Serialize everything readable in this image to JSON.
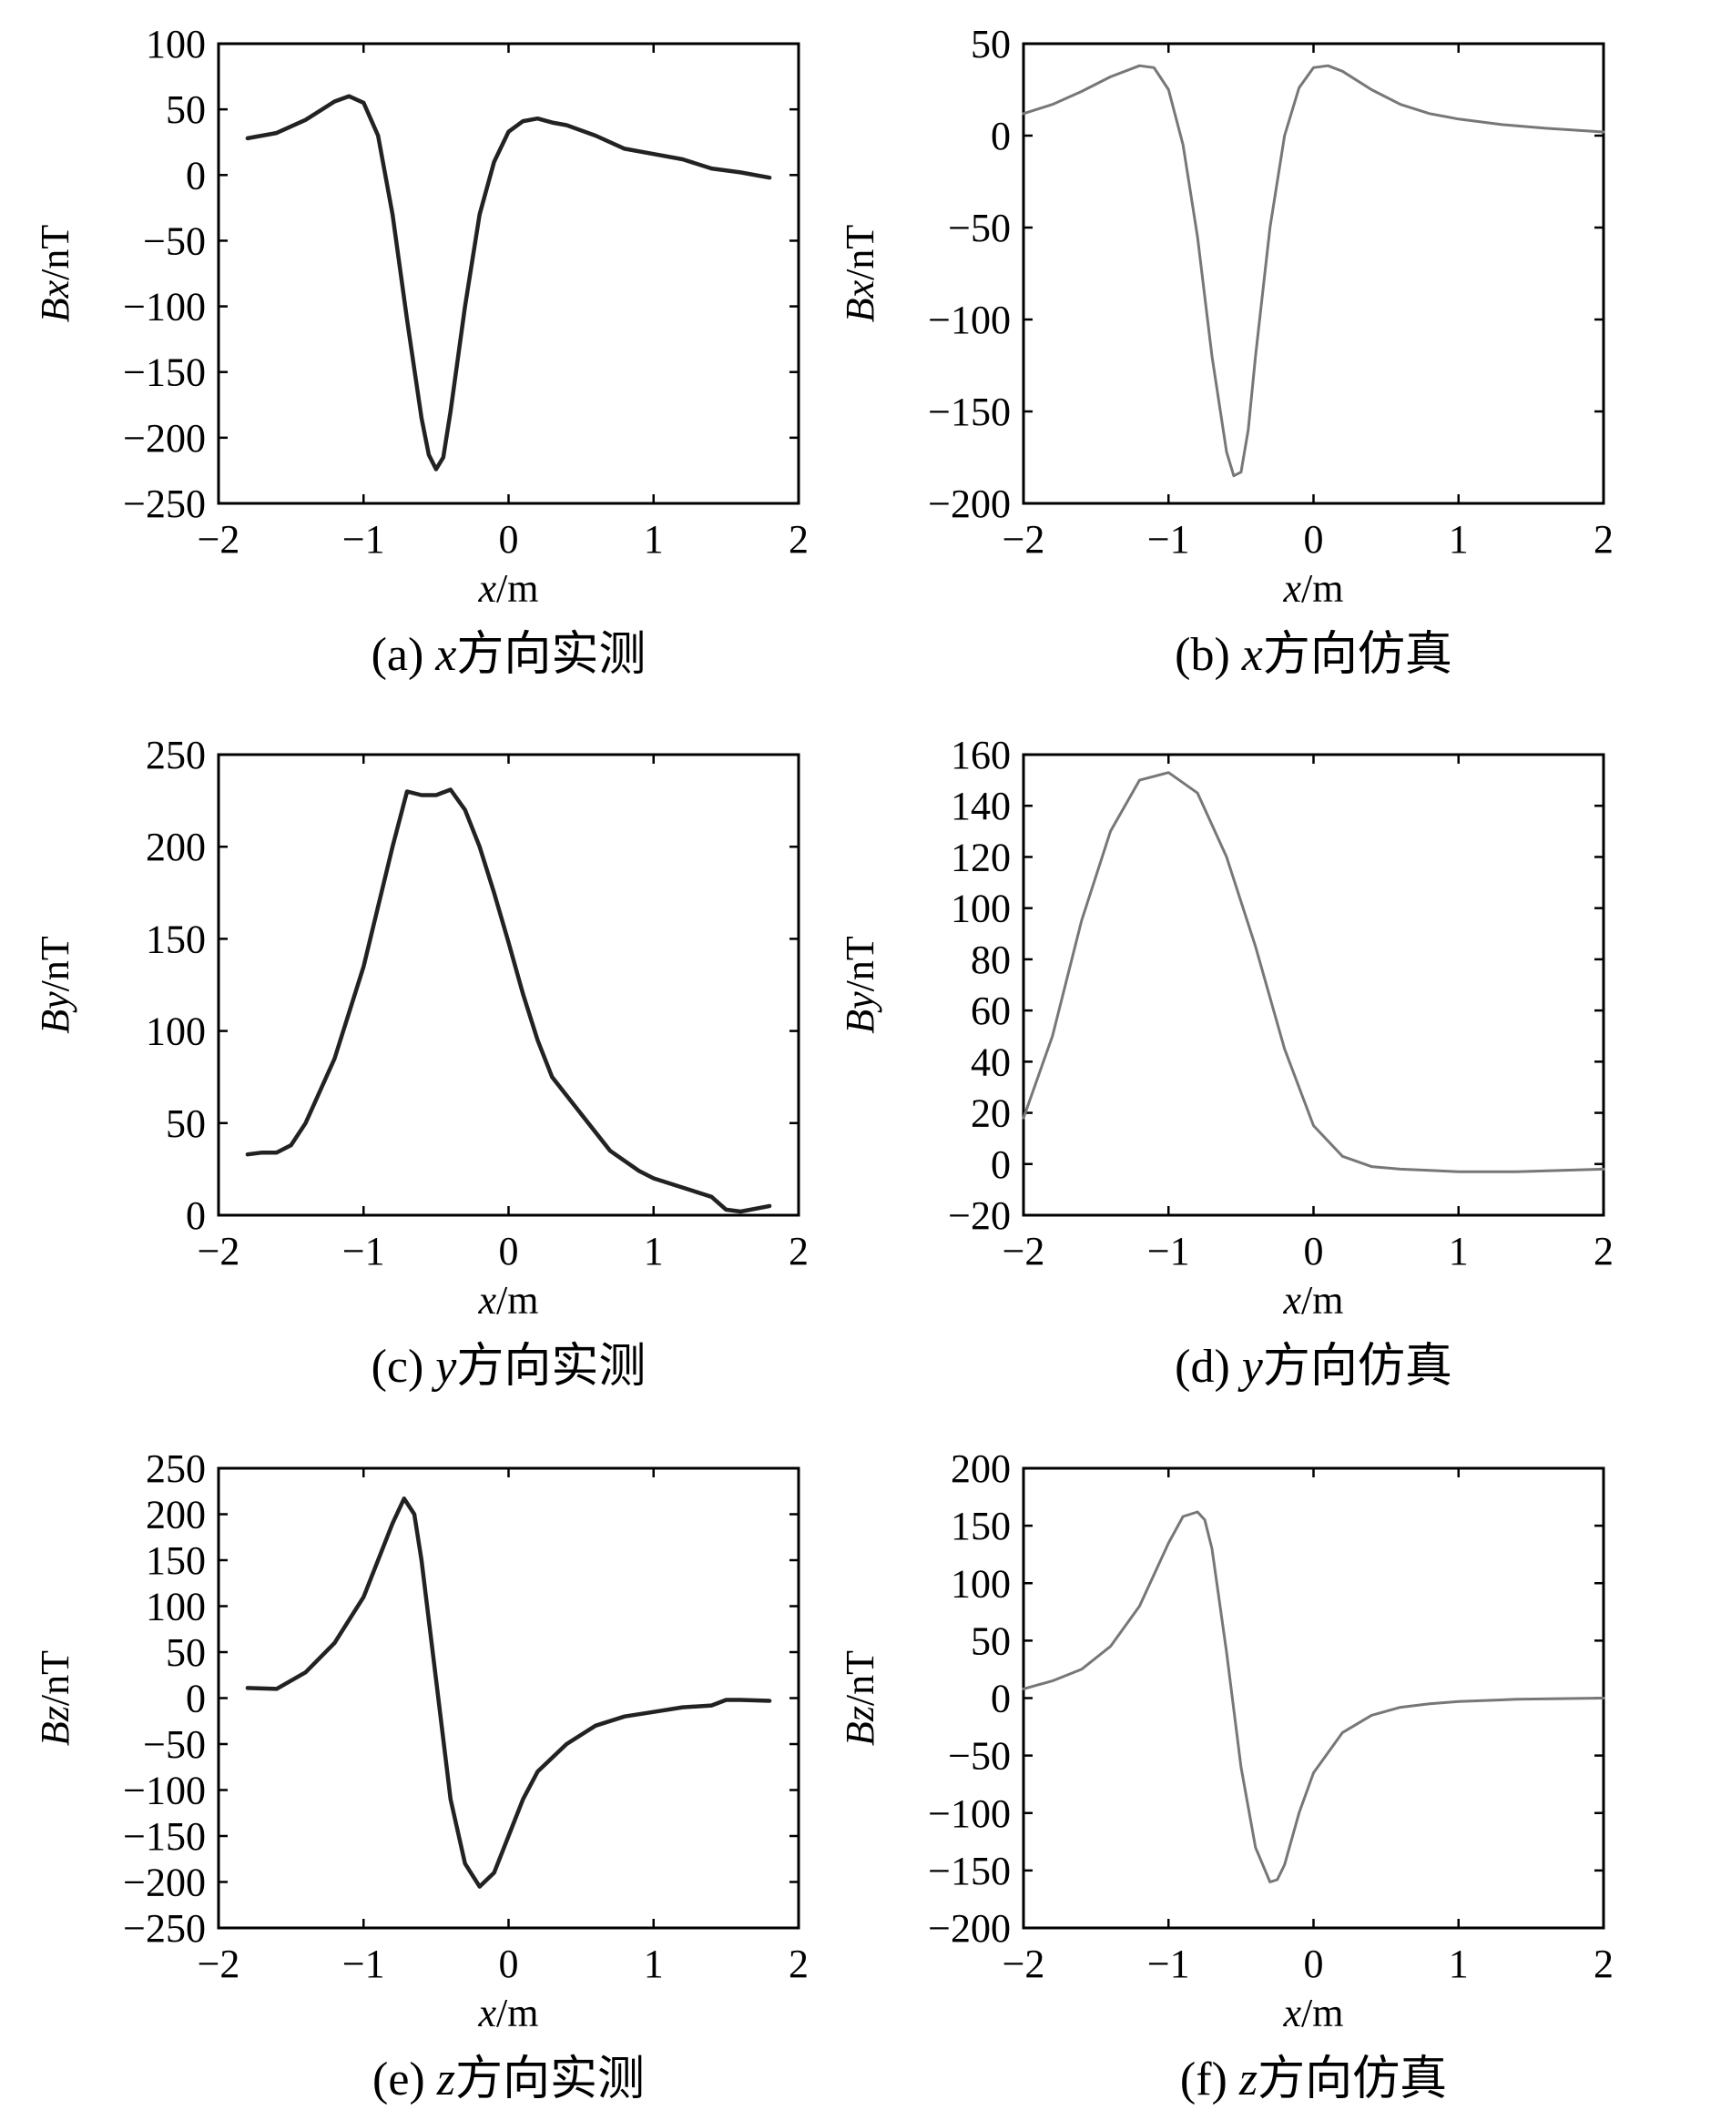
{
  "chart_data": [
    {
      "type": "line",
      "caption": {
        "label": "(a) ",
        "var": "x",
        "text": "方向实测"
      },
      "xlabel": {
        "var": "x",
        "unit": "/m"
      },
      "ylabel": {
        "var": "Bx",
        "unit": "/nT"
      },
      "xlim": [
        -2,
        2
      ],
      "ylim": [
        -250,
        100
      ],
      "xticks": [
        -2,
        -1,
        0,
        1,
        2
      ],
      "yticks": [
        -250,
        -200,
        -150,
        -100,
        -50,
        0,
        50,
        100
      ],
      "color": "#222222",
      "grid": false,
      "series": [
        {
          "x": [
            -1.8,
            -1.6,
            -1.4,
            -1.2,
            -1.1,
            -1.0,
            -0.9,
            -0.8,
            -0.7,
            -0.6,
            -0.55,
            -0.5,
            -0.45,
            -0.4,
            -0.3,
            -0.2,
            -0.1,
            0.0,
            0.1,
            0.2,
            0.3,
            0.4,
            0.6,
            0.8,
            1.0,
            1.2,
            1.4,
            1.6,
            1.8
          ],
          "y": [
            28,
            32,
            42,
            56,
            60,
            55,
            30,
            -30,
            -110,
            -185,
            -213,
            -224,
            -215,
            -180,
            -100,
            -30,
            10,
            33,
            41,
            43,
            40,
            38,
            30,
            20,
            16,
            12,
            5,
            2,
            -2
          ]
        }
      ]
    },
    {
      "type": "line",
      "caption": {
        "label": "(b) ",
        "var": "x",
        "text": "方向仿真"
      },
      "xlabel": {
        "var": "x",
        "unit": "/m"
      },
      "ylabel": {
        "var": "Bx",
        "unit": "/nT"
      },
      "xlim": [
        -2,
        2
      ],
      "ylim": [
        -200,
        50
      ],
      "xticks": [
        -2,
        -1,
        0,
        1,
        2
      ],
      "yticks": [
        -200,
        -150,
        -100,
        -50,
        0,
        50
      ],
      "color": "#777777",
      "grid": false,
      "series": [
        {
          "x": [
            -2.0,
            -1.8,
            -1.6,
            -1.4,
            -1.2,
            -1.1,
            -1.0,
            -0.9,
            -0.8,
            -0.7,
            -0.6,
            -0.55,
            -0.5,
            -0.45,
            -0.4,
            -0.3,
            -0.2,
            -0.1,
            0.0,
            0.1,
            0.2,
            0.4,
            0.6,
            0.8,
            1.0,
            1.3,
            1.6,
            2.0
          ],
          "y": [
            12,
            17,
            24,
            32,
            38,
            37,
            25,
            -5,
            -55,
            -120,
            -172,
            -185,
            -183,
            -160,
            -120,
            -50,
            0,
            26,
            37,
            38,
            35,
            25,
            17,
            12,
            9,
            6,
            4,
            2
          ]
        }
      ]
    },
    {
      "type": "line",
      "caption": {
        "label": "(c) ",
        "var": "y",
        "text": "方向实测"
      },
      "xlabel": {
        "var": "x",
        "unit": "/m"
      },
      "ylabel": {
        "var": "By",
        "unit": "/nT"
      },
      "xlim": [
        -2,
        2
      ],
      "ylim": [
        0,
        250
      ],
      "xticks": [
        -2,
        -1,
        0,
        1,
        2
      ],
      "yticks": [
        0,
        50,
        100,
        150,
        200,
        250
      ],
      "color": "#222222",
      "grid": false,
      "series": [
        {
          "x": [
            -1.8,
            -1.7,
            -1.6,
            -1.5,
            -1.4,
            -1.2,
            -1.0,
            -0.8,
            -0.7,
            -0.6,
            -0.5,
            -0.4,
            -0.3,
            -0.2,
            -0.1,
            0.0,
            0.1,
            0.2,
            0.3,
            0.5,
            0.7,
            0.9,
            1.0,
            1.2,
            1.4,
            1.5,
            1.6,
            1.8
          ],
          "y": [
            33,
            34,
            34,
            38,
            50,
            85,
            135,
            200,
            230,
            228,
            228,
            231,
            220,
            200,
            175,
            148,
            120,
            95,
            75,
            55,
            35,
            24,
            20,
            15,
            10,
            3,
            2,
            5
          ]
        }
      ]
    },
    {
      "type": "line",
      "caption": {
        "label": "(d) ",
        "var": "y",
        "text": "方向仿真"
      },
      "xlabel": {
        "var": "x",
        "unit": "/m"
      },
      "ylabel": {
        "var": "By",
        "unit": "/nT"
      },
      "xlim": [
        -2,
        2
      ],
      "ylim": [
        -20,
        160
      ],
      "xticks": [
        -2,
        -1,
        0,
        1,
        2
      ],
      "yticks": [
        -20,
        0,
        20,
        40,
        60,
        80,
        100,
        120,
        140,
        160
      ],
      "color": "#777777",
      "grid": false,
      "series": [
        {
          "x": [
            -2.0,
            -1.8,
            -1.6,
            -1.4,
            -1.2,
            -1.0,
            -0.8,
            -0.6,
            -0.4,
            -0.2,
            0.0,
            0.2,
            0.4,
            0.6,
            0.8,
            1.0,
            1.4,
            2.0
          ],
          "y": [
            18,
            50,
            95,
            130,
            150,
            153,
            145,
            120,
            85,
            45,
            15,
            3,
            -1,
            -2,
            -2.5,
            -3,
            -3,
            -2
          ]
        }
      ]
    },
    {
      "type": "line",
      "caption": {
        "label": "(e) ",
        "var": "z",
        "text": "方向实测"
      },
      "xlabel": {
        "var": "x",
        "unit": "/m"
      },
      "ylabel": {
        "var": "Bz",
        "unit": "/nT"
      },
      "xlim": [
        -2,
        2
      ],
      "ylim": [
        -250,
        250
      ],
      "xticks": [
        -2,
        -1,
        0,
        1,
        2
      ],
      "yticks": [
        -250,
        -200,
        -150,
        -100,
        -50,
        0,
        50,
        100,
        150,
        200,
        250
      ],
      "color": "#222222",
      "grid": false,
      "series": [
        {
          "x": [
            -1.8,
            -1.6,
            -1.4,
            -1.2,
            -1.0,
            -0.8,
            -0.72,
            -0.65,
            -0.6,
            -0.5,
            -0.4,
            -0.3,
            -0.2,
            -0.1,
            0.0,
            0.1,
            0.2,
            0.4,
            0.6,
            0.8,
            1.0,
            1.2,
            1.4,
            1.5,
            1.6,
            1.8
          ],
          "y": [
            11,
            10,
            28,
            60,
            110,
            190,
            217,
            200,
            150,
            20,
            -110,
            -180,
            -205,
            -190,
            -150,
            -110,
            -80,
            -50,
            -30,
            -20,
            -15,
            -10,
            -8,
            -2,
            -2,
            -3
          ]
        }
      ]
    },
    {
      "type": "line",
      "caption": {
        "label": "(f) ",
        "var": "z",
        "text": "方向仿真"
      },
      "xlabel": {
        "var": "x",
        "unit": "/m"
      },
      "ylabel": {
        "var": "Bz",
        "unit": "/nT"
      },
      "xlim": [
        -2,
        2
      ],
      "ylim": [
        -200,
        200
      ],
      "xticks": [
        -2,
        -1,
        0,
        1,
        2
      ],
      "yticks": [
        -200,
        -150,
        -100,
        -50,
        0,
        50,
        100,
        150,
        200
      ],
      "color": "#777777",
      "grid": false,
      "series": [
        {
          "x": [
            -2.0,
            -1.8,
            -1.6,
            -1.4,
            -1.2,
            -1.0,
            -0.9,
            -0.8,
            -0.75,
            -0.7,
            -0.6,
            -0.5,
            -0.4,
            -0.3,
            -0.25,
            -0.2,
            -0.1,
            0.0,
            0.2,
            0.4,
            0.6,
            0.8,
            1.0,
            1.4,
            2.0
          ],
          "y": [
            8,
            15,
            25,
            45,
            80,
            135,
            158,
            162,
            155,
            130,
            40,
            -60,
            -130,
            -160,
            -158,
            -145,
            -100,
            -65,
            -30,
            -15,
            -8,
            -5,
            -3,
            -1,
            0
          ]
        }
      ]
    }
  ]
}
